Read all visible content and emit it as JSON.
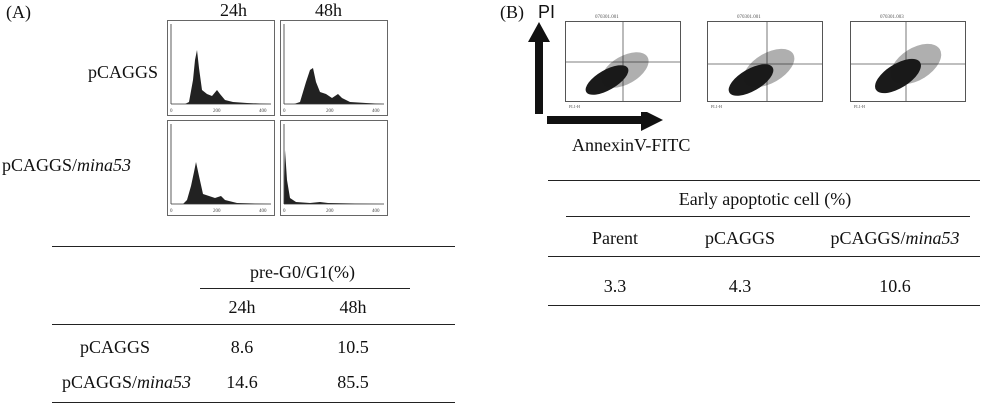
{
  "panelA": {
    "label": "(A)",
    "time_headers": [
      "24h",
      "48h"
    ],
    "row_labels": [
      {
        "text": "pCAGGS",
        "italic": ""
      },
      {
        "text": "pCAGGS/",
        "italic": "mina53"
      }
    ],
    "hist_axis": {
      "x_ticks": [
        "0",
        "200",
        "400"
      ],
      "x_label": "FL2-H",
      "y_label": "Counts"
    },
    "table": {
      "group_header": "pre-G0/G1(%)",
      "columns": [
        "24h",
        "48h"
      ],
      "rows": [
        {
          "label": "pCAGGS",
          "label_italic": "",
          "values": [
            "8.6",
            "10.5"
          ]
        },
        {
          "label": "pCAGGS/",
          "label_italic": "mina53",
          "values": [
            "14.6",
            "85.5"
          ]
        }
      ]
    }
  },
  "panelB": {
    "label": "(B)",
    "y_arrow_label": "PI",
    "x_arrow_label": "AnnexinV-FITC",
    "plot_titles": [
      "070301.001",
      "070301.001",
      "070301.003"
    ],
    "dot_axis": {
      "x_label": "FL1-H",
      "y_label": "FL2-H",
      "ticks": [
        "10⁰",
        "10¹",
        "10²",
        "10³",
        "10⁴"
      ]
    },
    "table": {
      "group_header": "Early apoptotic cell (%)",
      "columns": [
        {
          "text": "Parent",
          "italic": ""
        },
        {
          "text": "pCAGGS",
          "italic": ""
        },
        {
          "text": "pCAGGS/",
          "italic": "mina53"
        }
      ],
      "values": [
        "3.3",
        "4.3",
        "10.6"
      ]
    }
  }
}
